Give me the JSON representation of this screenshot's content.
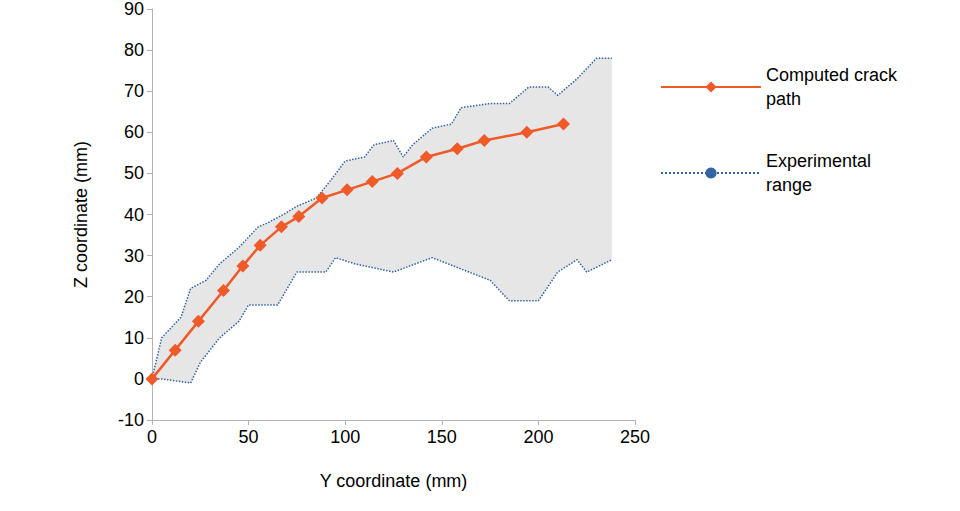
{
  "chart_data": {
    "type": "line",
    "x_label": "Y coordinate (mm)",
    "y_label": "Z coordinate (mm)",
    "xlim": [
      0,
      250
    ],
    "xticks": [
      0,
      50,
      100,
      150,
      200,
      250
    ],
    "ylim": [
      -10,
      90
    ],
    "yticks": [
      -10,
      0,
      10,
      20,
      30,
      40,
      50,
      60,
      70,
      80,
      90
    ],
    "grid": false,
    "legend": "right",
    "series": [
      {
        "name": "Computed crack path",
        "type": "line",
        "color": "#f05a28",
        "marker": "diamond",
        "line_style": "solid",
        "x": [
          0,
          12,
          24,
          37,
          47,
          56,
          67,
          76,
          88,
          101,
          114,
          127,
          142,
          158,
          172,
          194,
          213
        ],
        "values": [
          0,
          7,
          14,
          21.5,
          27.5,
          32.5,
          37,
          39.5,
          44,
          46,
          48,
          50,
          54,
          56,
          58,
          60,
          62
        ]
      },
      {
        "name": "Experimental range",
        "type": "range",
        "color": "#3465a4",
        "line_style": "dotted",
        "upper": {
          "x": [
            0,
            5,
            15,
            20,
            28,
            35,
            45,
            55,
            60,
            68,
            75,
            85,
            92,
            100,
            110,
            115,
            125,
            130,
            135,
            145,
            155,
            160,
            175,
            185,
            195,
            205,
            210,
            220,
            230,
            238
          ],
          "values": [
            0,
            10,
            15,
            22,
            24,
            28,
            32,
            37,
            38,
            40,
            42,
            44,
            48,
            53,
            54,
            57,
            58,
            54,
            57,
            61,
            62,
            66,
            67,
            67,
            71,
            71,
            69,
            73,
            78,
            78
          ]
        },
        "lower": {
          "x": [
            0,
            5,
            20,
            25,
            35,
            45,
            50,
            60,
            65,
            75,
            90,
            95,
            105,
            125,
            145,
            175,
            185,
            200,
            210,
            220,
            225,
            238
          ],
          "values": [
            0,
            0,
            -1,
            4,
            10,
            14,
            18,
            18,
            18,
            26,
            26,
            29.5,
            28,
            26,
            29.5,
            24,
            19,
            19,
            26,
            29,
            26,
            29
          ]
        }
      }
    ]
  }
}
